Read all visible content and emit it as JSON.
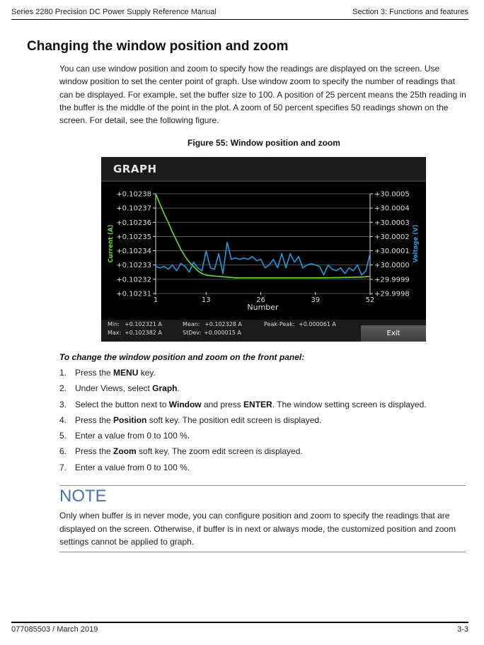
{
  "header": {
    "left": "Series 2280 Precision DC Power Supply Reference Manual",
    "right": "Section 3: Functions and features"
  },
  "section": {
    "title": "Changing the window position and zoom",
    "intro": "You can use window position and zoom to specify how the readings are displayed on the screen. Use window position to set the center point of graph. Use window zoom to specify the number of readings that can be displayed. For example, set the buffer size to 100. A position of 25 percent means the 25th reading in the buffer is the middle of the point in the plot. A zoom of 50 percent specifies 50 readings shown on the screen. For detail, see the following figure."
  },
  "figure": {
    "caption": "Figure 55: Window position and zoom",
    "screen_title": "GRAPH",
    "stats": {
      "min_label": "Min:",
      "min_value": "+0.102321 A",
      "max_label": "Max:",
      "max_value": "+0.102382 A",
      "mean_label": "Mean:",
      "mean_value": "+0.102328 A",
      "stdev_label": "StDev:",
      "stdev_value": "+0.000015 A",
      "pp_label": "Peak-Peak:",
      "pp_value": "+0.000061 A"
    },
    "exit_label": "Exit"
  },
  "chart_data": {
    "type": "line",
    "xlabel": "Number",
    "ylabel_left": "Current (A)",
    "ylabel_right": "Voltage (V)",
    "xlim": [
      1,
      52
    ],
    "x_ticks": [
      "1",
      "13",
      "26",
      "39",
      "52"
    ],
    "ylim_left": [
      0.10231,
      0.10238
    ],
    "y_ticks_left": [
      "+0.10238",
      "+0.10237",
      "+0.10236",
      "+0.10235",
      "+0.10234",
      "+0.10233",
      "+0.10232",
      "+0.10231"
    ],
    "ylim_right": [
      29.9998,
      30.0005
    ],
    "y_ticks_right": [
      "+30.0005",
      "+30.0004",
      "+30.0003",
      "+30.0002",
      "+30.0001",
      "+30.0000",
      "+29.9999",
      "+29.9998"
    ],
    "colors": {
      "current": "#66dd33",
      "voltage": "#2299dd",
      "text": "#dddddd",
      "grid": "#6a6a6a"
    },
    "series": [
      {
        "axis": "left",
        "color": "#66dd33",
        "x": [
          1,
          2,
          3,
          4,
          5,
          6,
          7,
          8,
          9,
          10,
          11,
          12,
          13,
          14,
          16,
          18,
          20,
          22,
          26,
          30,
          35,
          40,
          45,
          50,
          52
        ],
        "values": [
          0.10238,
          0.102373,
          0.102366,
          0.10236,
          0.102353,
          0.102347,
          0.102341,
          0.102336,
          0.102332,
          0.102329,
          0.102326,
          0.102324,
          0.102323,
          0.1023225,
          0.102322,
          0.1023215,
          0.102321,
          0.102321,
          0.102321,
          0.102321,
          0.102321,
          0.102321,
          0.1023212,
          0.1023215,
          0.102322
        ]
      },
      {
        "axis": "right",
        "color": "#2299dd",
        "x": [
          1,
          2,
          3,
          4,
          5,
          6,
          7,
          8,
          9,
          10,
          11,
          12,
          13,
          14,
          15,
          16,
          17,
          18,
          19,
          20,
          21,
          22,
          23,
          24,
          25,
          26,
          27,
          28,
          29,
          30,
          31,
          32,
          33,
          34,
          35,
          36,
          37,
          38,
          39,
          40,
          41,
          42,
          43,
          44,
          45,
          46,
          47,
          48,
          49,
          50,
          51,
          52
        ],
        "values": [
          29.99999,
          29.99998,
          29.99999,
          29.99997,
          30.0,
          29.99996,
          30.00001,
          29.99999,
          29.99995,
          30.00002,
          29.99998,
          29.99996,
          30.0001,
          29.99998,
          29.99997,
          30.00008,
          29.99994,
          30.00016,
          30.00004,
          30.00005,
          30.00004,
          30.00005,
          30.00004,
          30.00006,
          30.00003,
          30.00004,
          29.99998,
          30.0,
          30.00004,
          29.99998,
          30.00008,
          29.99998,
          30.00008,
          30.00002,
          30.00006,
          29.99998,
          30.0,
          30.00001,
          30.0,
          29.99999,
          29.99993,
          30.0,
          29.99997,
          29.99996,
          29.99998,
          29.99994,
          29.99998,
          29.99996,
          30.0,
          29.99993,
          29.99996,
          30.00008
        ]
      }
    ]
  },
  "procedure": {
    "title": "To change the window position and zoom on the front panel:",
    "steps": [
      {
        "n": "1.",
        "a": "Press the ",
        "b": "MENU",
        "c": " key.",
        "d": "",
        "e": ""
      },
      {
        "n": "2.",
        "a": "Under Views, select ",
        "b": "Graph",
        "c": ".",
        "d": "",
        "e": ""
      },
      {
        "n": "3.",
        "a": "Select the button next to ",
        "b": "Window",
        "c": " and press ",
        "d": "ENTER",
        "e": ". The window setting screen is displayed."
      },
      {
        "n": "4.",
        "a": "Press the ",
        "b": "Position",
        "c": " soft key. The position edit screen is displayed.",
        "d": "",
        "e": ""
      },
      {
        "n": "5.",
        "a": "Enter a value from 0 to 100 %.",
        "b": "",
        "c": "",
        "d": "",
        "e": ""
      },
      {
        "n": "6.",
        "a": "Press the ",
        "b": "Zoom",
        "c": " soft key. The zoom edit screen is displayed.",
        "d": "",
        "e": ""
      },
      {
        "n": "7.",
        "a": "Enter a value from 0 to 100 %.",
        "b": "",
        "c": "",
        "d": "",
        "e": ""
      }
    ]
  },
  "note": {
    "title": "NOTE",
    "text": "Only when buffer is in never mode, you can configure position and zoom to specify the readings that are displayed on the screen. Otherwise, if buffer is in next or always mode, the customized position and zoom settings cannot be applied to graph."
  },
  "footer": {
    "left": "077085503 / March 2019",
    "right": "3-3"
  }
}
